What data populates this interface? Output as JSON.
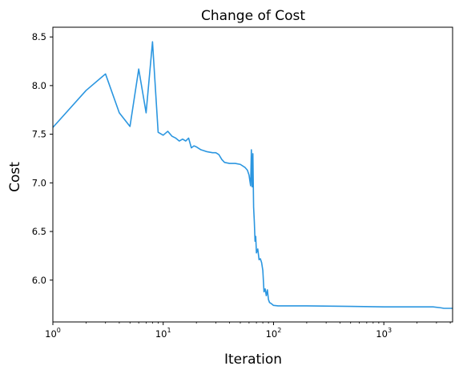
{
  "chart_data": {
    "type": "line",
    "title": "Change of Cost",
    "xlabel": "Iteration",
    "ylabel": "Cost",
    "xscale": "log",
    "xlim": [
      1,
      4200
    ],
    "ylim": [
      5.57,
      8.6
    ],
    "x_ticks": [
      {
        "value": 1,
        "base": "10",
        "exp": "0"
      },
      {
        "value": 10,
        "base": "10",
        "exp": "1"
      },
      {
        "value": 100,
        "base": "10",
        "exp": "2"
      },
      {
        "value": 1000,
        "base": "10",
        "exp": "3"
      }
    ],
    "y_ticks": [
      {
        "value": 6.0,
        "label": "6.0"
      },
      {
        "value": 6.5,
        "label": "6.5"
      },
      {
        "value": 7.0,
        "label": "7.0"
      },
      {
        "value": 7.5,
        "label": "7.5"
      },
      {
        "value": 8.0,
        "label": "8.0"
      },
      {
        "value": 8.5,
        "label": "8.5"
      }
    ],
    "grid": false,
    "legend": "none",
    "line_color": "#2b96e0",
    "series": [
      {
        "x": [
          1,
          2,
          3,
          4,
          5,
          6,
          7,
          8,
          9,
          10,
          11,
          12,
          13,
          14,
          15,
          16,
          17,
          18,
          19,
          20,
          22,
          25,
          28,
          30,
          32,
          34,
          36,
          40,
          45,
          50,
          55,
          58,
          60,
          62,
          63,
          64,
          65,
          66,
          67,
          68,
          69,
          70,
          72,
          74,
          76,
          78,
          80,
          82,
          84,
          86,
          88,
          90,
          92,
          95,
          100,
          110,
          130,
          200,
          500,
          1000,
          2000,
          2800,
          3300,
          3500,
          4200
        ],
        "y": [
          7.57,
          7.95,
          8.12,
          7.72,
          7.58,
          8.17,
          7.72,
          8.45,
          7.52,
          7.49,
          7.53,
          7.48,
          7.46,
          7.43,
          7.45,
          7.43,
          7.46,
          7.36,
          7.38,
          7.37,
          7.34,
          7.32,
          7.31,
          7.31,
          7.29,
          7.24,
          7.21,
          7.2,
          7.2,
          7.19,
          7.16,
          7.13,
          7.08,
          6.97,
          7.34,
          6.96,
          7.3,
          6.75,
          6.6,
          6.4,
          6.45,
          6.28,
          6.32,
          6.21,
          6.22,
          6.18,
          6.1,
          5.88,
          5.91,
          5.84,
          5.9,
          5.8,
          5.77,
          5.76,
          5.74,
          5.735,
          5.735,
          5.735,
          5.73,
          5.725,
          5.725,
          5.725,
          5.715,
          5.71,
          5.71
        ]
      }
    ]
  }
}
